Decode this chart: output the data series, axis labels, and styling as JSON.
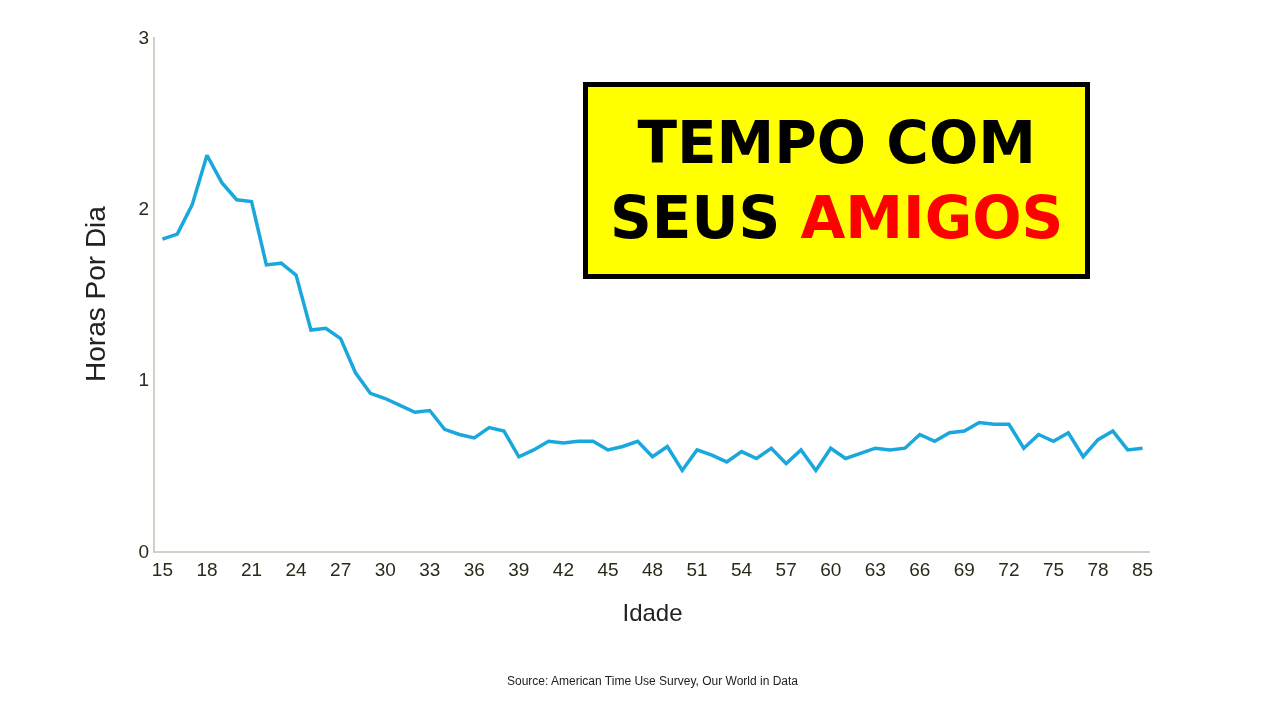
{
  "chart_data": {
    "type": "line",
    "title": "TEMPO COM SEUS AMIGOS",
    "xlabel": "Idade",
    "ylabel": "Horas Por Dia",
    "categories": [
      "15",
      null,
      null,
      "18",
      null,
      null,
      "21",
      null,
      null,
      "24",
      null,
      null,
      "27",
      null,
      null,
      "30",
      null,
      null,
      "33",
      null,
      null,
      "36",
      null,
      null,
      "39",
      null,
      null,
      "42",
      null,
      null,
      "45",
      null,
      null,
      "48",
      null,
      null,
      "51",
      null,
      null,
      "54",
      null,
      null,
      "57",
      null,
      null,
      "60",
      null,
      null,
      "63",
      null,
      null,
      "66",
      null,
      null,
      "69",
      null,
      null,
      "72",
      null,
      null,
      "75",
      null,
      null,
      "78",
      null,
      null,
      "85"
    ],
    "series": [
      {
        "color": "#1aa7dc",
        "values": [
          1.82,
          1.85,
          2.02,
          2.31,
          2.15,
          2.05,
          2.04,
          1.67,
          1.68,
          1.61,
          1.29,
          1.3,
          1.24,
          1.04,
          0.92,
          0.89,
          0.85,
          0.81,
          0.82,
          0.71,
          0.68,
          0.66,
          0.72,
          0.7,
          0.55,
          0.59,
          0.64,
          0.63,
          0.64,
          0.64,
          0.59,
          0.61,
          0.64,
          0.55,
          0.61,
          0.47,
          0.59,
          0.56,
          0.52,
          0.58,
          0.54,
          0.6,
          0.51,
          0.59,
          0.47,
          0.6,
          0.54,
          0.57,
          0.6,
          0.59,
          0.6,
          0.68,
          0.64,
          0.69,
          0.7,
          0.75,
          0.74,
          0.74,
          0.6,
          0.68,
          0.64,
          0.69,
          0.55,
          0.65,
          0.7,
          0.59,
          0.6
        ]
      }
    ],
    "ylim": [
      0,
      3
    ],
    "yticks": [
      0,
      1,
      2,
      3
    ],
    "marker": "none",
    "line_style": "solid",
    "annotations": [
      "Source: American Time Use Survey, Our World in Data"
    ]
  }
}
